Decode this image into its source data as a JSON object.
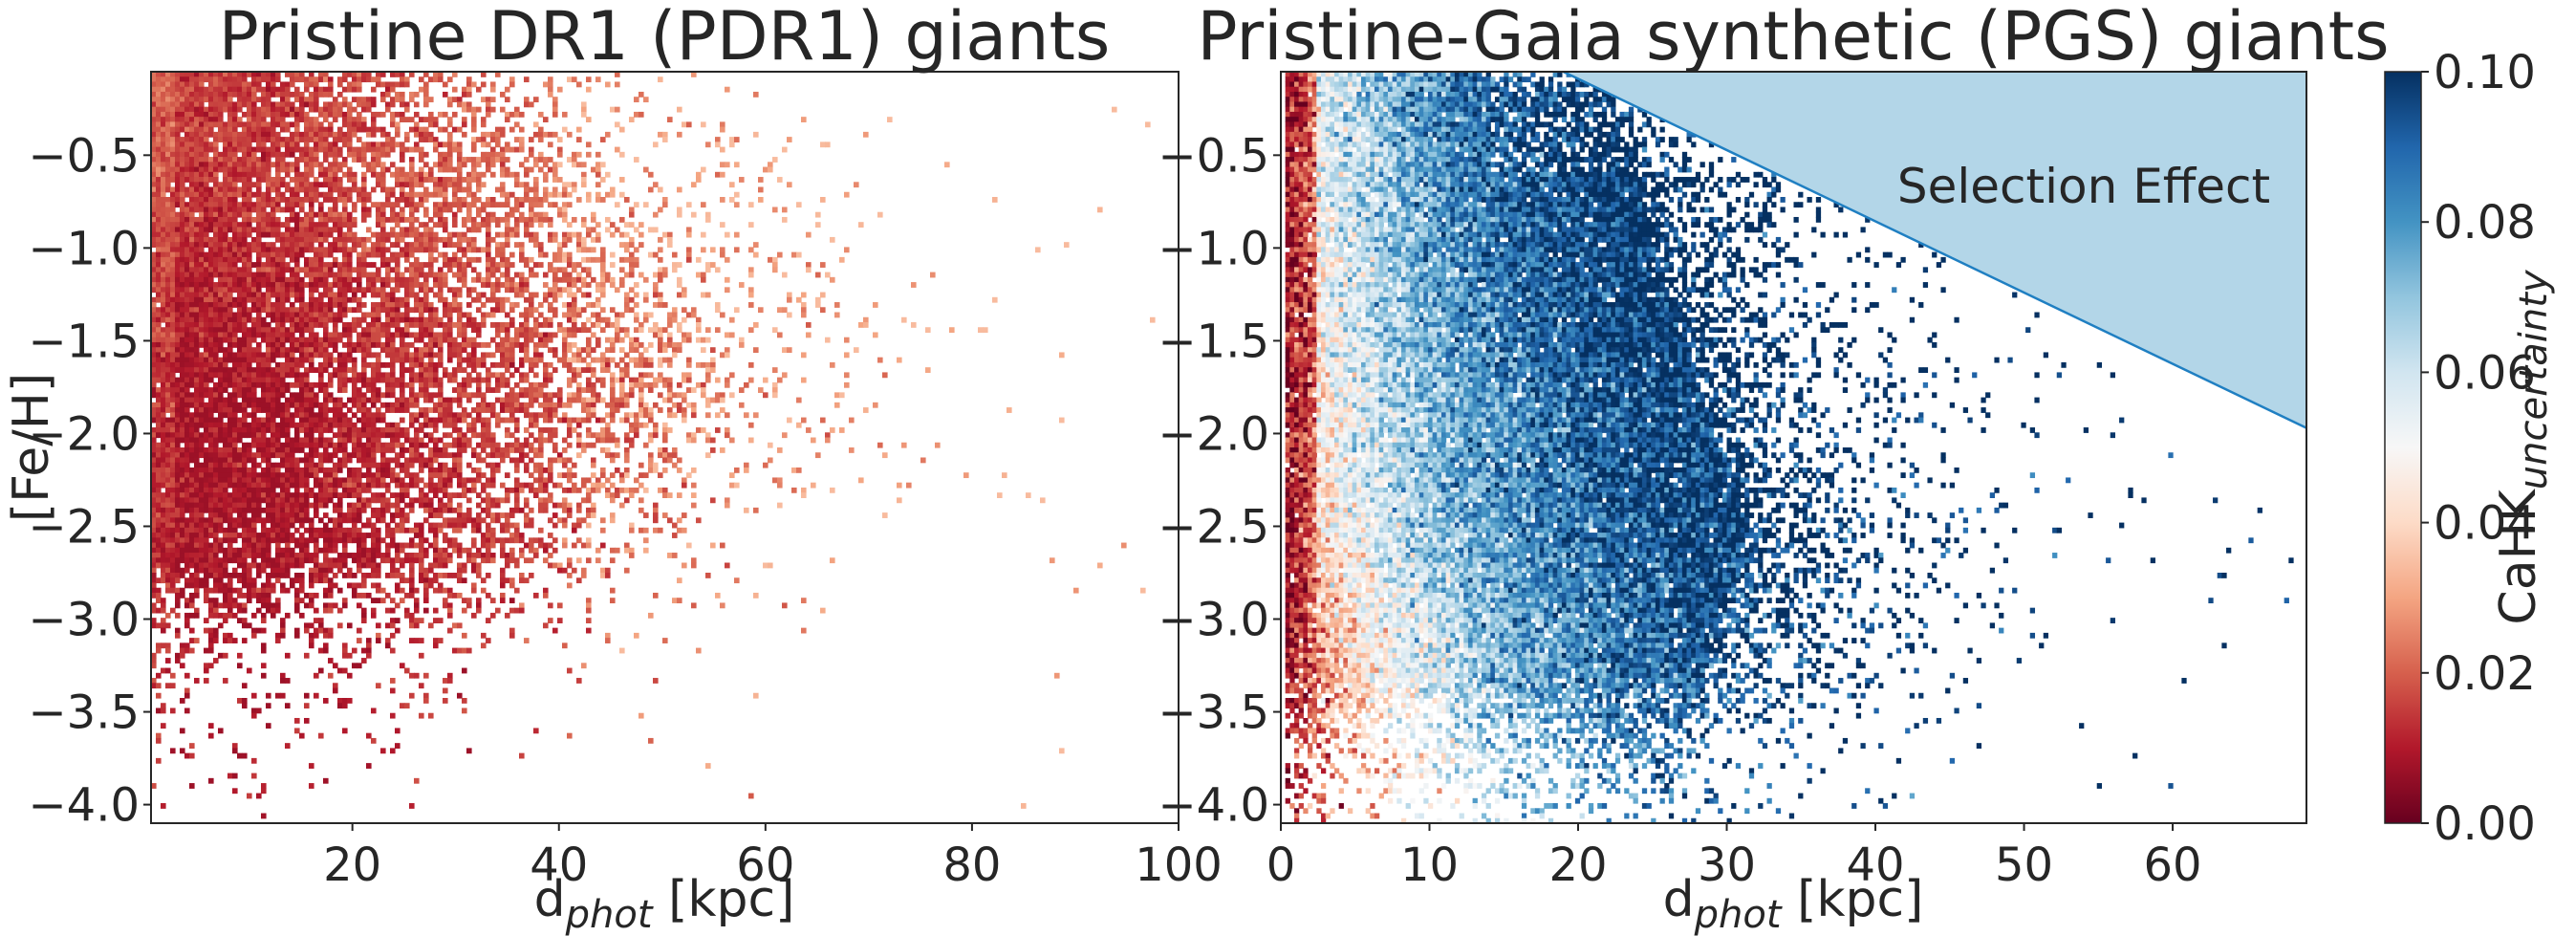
{
  "colors": {
    "cmap": "RdBu",
    "cmap_stops": [
      "#67001f",
      "#b2182b",
      "#d6604d",
      "#f4a582",
      "#fddbc7",
      "#f7f7f7",
      "#d1e5f0",
      "#92c5de",
      "#4393c3",
      "#2166ac",
      "#053061"
    ],
    "selection_fill": "#b3d6e8",
    "selection_edge": "#1f7fc2"
  },
  "chart_data": [
    {
      "type": "heatmap",
      "title": "Pristine DR1 (PDR1) giants",
      "xlabel_main": "d",
      "xlabel_sub": "phot",
      "xlabel_unit": " [kpc]",
      "ylabel": "[Fe/H]",
      "xlim": [
        0.5,
        100
      ],
      "ylim": [
        -4.1,
        -0.05
      ],
      "xticks": [
        20,
        40,
        60,
        80,
        100
      ],
      "xtick_labels": [
        "20",
        "40",
        "60",
        "80",
        "100"
      ],
      "yticks": [
        -0.5,
        -1.0,
        -1.5,
        -2.0,
        -2.5,
        -3.0,
        -3.5,
        -4.0
      ],
      "ytick_labels": [
        "−0.5",
        "−1.0",
        "−1.5",
        "−2.0",
        "−2.5",
        "−3.0",
        "−3.5",
        "−4.0"
      ],
      "color_variable": "CaHK uncertainty",
      "value_range": [
        0.0,
        0.035
      ],
      "description_of_density": "Dense region at d < 20 kpc and [Fe/H] > -2.8; sparse tail extending to ~97 kpc"
    },
    {
      "type": "heatmap",
      "title": "Pristine-Gaia synthetic (PGS) giants",
      "xlabel_main": "d",
      "xlabel_sub": "phot",
      "xlabel_unit": " [kpc]",
      "xlim": [
        0,
        69
      ],
      "ylim": [
        -4.1,
        -0.05
      ],
      "xticks": [
        0,
        10,
        20,
        30,
        40,
        50,
        60
      ],
      "xtick_labels": [
        "0",
        "10",
        "20",
        "30",
        "40",
        "50",
        "60"
      ],
      "yticks": [
        -0.5,
        -1.0,
        -1.5,
        -2.0,
        -2.5,
        -3.0,
        -3.5,
        -4.0
      ],
      "ytick_labels": [
        "−0.5",
        "−1.0",
        "−1.5",
        "−2.0",
        "−2.5",
        "−3.0",
        "−3.5",
        "−4.0"
      ],
      "color_variable": "CaHK uncertainty",
      "value_range": [
        0.0,
        0.1
      ],
      "annotation": "Selection Effect",
      "selection_line": {
        "x": [
          19,
          69
        ],
        "y": [
          -0.05,
          -1.97
        ]
      }
    }
  ],
  "colorbar": {
    "label_main": "CaHK",
    "label_sub": "uncertainty",
    "ticks": [
      0.0,
      0.02,
      0.04,
      0.06,
      0.08,
      0.1
    ],
    "tick_labels": [
      "0.00",
      "0.02",
      "0.04",
      "0.06",
      "0.08",
      "0.10"
    ],
    "range": [
      0.0,
      0.1
    ]
  }
}
